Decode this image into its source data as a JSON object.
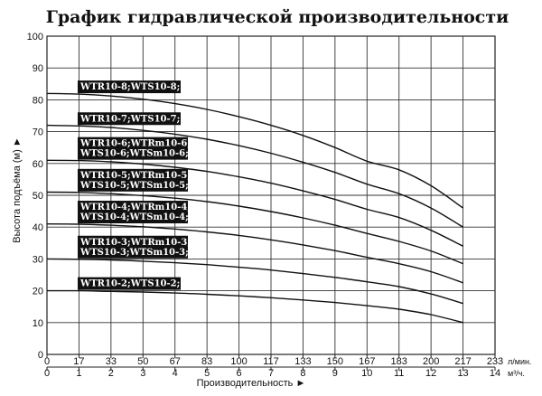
{
  "chart_data": {
    "type": "line",
    "title": "График гидравлической производительности",
    "ylabel": "Высота подъёма (м) ►",
    "xlabel": "Производительность ►",
    "ylim": [
      0,
      100
    ],
    "yticks": [
      0,
      10,
      20,
      30,
      40,
      50,
      60,
      70,
      80,
      90,
      100
    ],
    "x_top": {
      "unit": "л/мин.",
      "ticks": [
        "0",
        "17",
        "33",
        "50",
        "67",
        "83",
        "100",
        "117",
        "133",
        "150",
        "167",
        "183",
        "200",
        "217",
        "233"
      ]
    },
    "x_bottom": {
      "unit": "м³/ч.",
      "ticks": [
        "0",
        "1",
        "2",
        "3",
        "4",
        "5",
        "6",
        "7",
        "8",
        "9",
        "10",
        "11",
        "12",
        "13",
        "14"
      ]
    },
    "xlim": [
      0,
      14
    ],
    "grid": true,
    "series": [
      {
        "label_lines": [
          "WTR10-8;WTS10-8;"
        ],
        "x": [
          0,
          1,
          2,
          3,
          4,
          5,
          6,
          7,
          8,
          9,
          10,
          11,
          12,
          13
        ],
        "y": [
          82,
          81.8,
          81.2,
          80.2,
          78.8,
          77,
          74.7,
          72,
          68.8,
          65,
          60.7,
          58,
          53,
          46
        ]
      },
      {
        "label_lines": [
          "WTR10-7;WTS10-7;"
        ],
        "x": [
          0,
          1,
          2,
          3,
          4,
          5,
          6,
          7,
          8,
          9,
          10,
          11,
          12,
          13
        ],
        "y": [
          72,
          71.8,
          71.3,
          70.4,
          69.2,
          67.6,
          65.6,
          63.2,
          60.4,
          57.2,
          53.5,
          50.5,
          46,
          40
        ]
      },
      {
        "label_lines": [
          "WTR10-6;WTRm10-6;",
          "WTS10-6;WTSm10-6;"
        ],
        "x": [
          0,
          1,
          2,
          3,
          4,
          5,
          6,
          7,
          8,
          9,
          10,
          11,
          12,
          13
        ],
        "y": [
          61,
          60.9,
          60.5,
          59.8,
          58.8,
          57.5,
          55.8,
          53.8,
          51.4,
          48.7,
          45.6,
          43,
          39,
          34
        ]
      },
      {
        "label_lines": [
          "WTR10-5;WTRm10-5;",
          "WTS10-5;WTSm10-5;"
        ],
        "x": [
          0,
          1,
          2,
          3,
          4,
          5,
          6,
          7,
          8,
          9,
          10,
          11,
          12,
          13
        ],
        "y": [
          51,
          50.9,
          50.5,
          49.9,
          49.1,
          48,
          46.6,
          44.9,
          42.9,
          40.6,
          38,
          35.5,
          32.5,
          28.5
        ]
      },
      {
        "label_lines": [
          "WTR10-4;WTRm10-4;",
          "WTS10-4;WTSm10-4;"
        ],
        "x": [
          0,
          1,
          2,
          3,
          4,
          5,
          6,
          7,
          8,
          9,
          10,
          11,
          12,
          13
        ],
        "y": [
          41,
          40.9,
          40.6,
          40.1,
          39.4,
          38.5,
          37.4,
          36,
          34.4,
          32.6,
          30.5,
          28.5,
          26,
          22.5
        ]
      },
      {
        "label_lines": [
          "WTR10-3;WTRm10-3;",
          "WTS10-3;WTSm10-3;"
        ],
        "x": [
          0,
          1,
          2,
          3,
          4,
          5,
          6,
          7,
          8,
          9,
          10,
          11,
          12,
          13
        ],
        "y": [
          30,
          29.9,
          29.7,
          29.3,
          28.8,
          28.2,
          27.4,
          26.5,
          25.4,
          24.2,
          22.8,
          21.3,
          19,
          16
        ]
      },
      {
        "label_lines": [
          "WTR10-2;WTS10-2;"
        ],
        "x": [
          0,
          1,
          2,
          3,
          4,
          5,
          6,
          7,
          8,
          9,
          10,
          11,
          12,
          13
        ],
        "y": [
          20,
          20,
          19.8,
          19.6,
          19.3,
          18.9,
          18.4,
          17.8,
          17.1,
          16.3,
          15.3,
          14.2,
          12.5,
          10
        ]
      }
    ]
  }
}
